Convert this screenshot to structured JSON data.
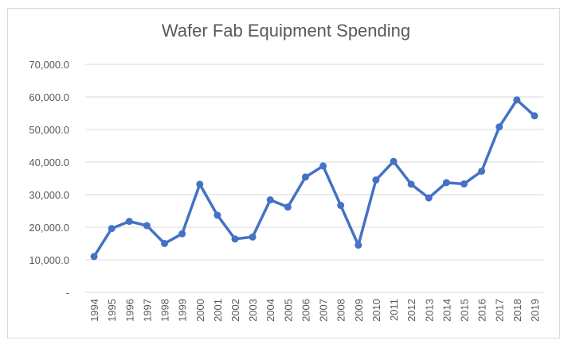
{
  "chart_data": {
    "type": "line",
    "title": "Wafer Fab Equipment Spending",
    "xlabel": "",
    "ylabel": "",
    "ylim": [
      0,
      70000
    ],
    "yticks": [
      "-",
      "10,000.0",
      "20,000.0",
      "30,000.0",
      "40,000.0",
      "50,000.0",
      "60,000.0",
      "70,000.0"
    ],
    "grid": true,
    "legend": "none",
    "categories": [
      "1994",
      "1995",
      "1996",
      "1997",
      "1998",
      "1999",
      "2000",
      "2001",
      "2002",
      "2003",
      "2004",
      "2005",
      "2006",
      "2007",
      "2008",
      "2009",
      "2010",
      "2011",
      "2012",
      "2013",
      "2014",
      "2015",
      "2016",
      "2017",
      "2018",
      "2019"
    ],
    "series": [
      {
        "name": "Wafer Fab Equipment Spending",
        "color": "#4472c4",
        "values": [
          11000,
          19600,
          21800,
          20500,
          15000,
          18000,
          33200,
          23700,
          16400,
          17000,
          28400,
          26200,
          35400,
          38800,
          26700,
          14500,
          34500,
          40200,
          33200,
          29000,
          33700,
          33300,
          37200,
          50800,
          59100,
          54200
        ]
      }
    ]
  }
}
